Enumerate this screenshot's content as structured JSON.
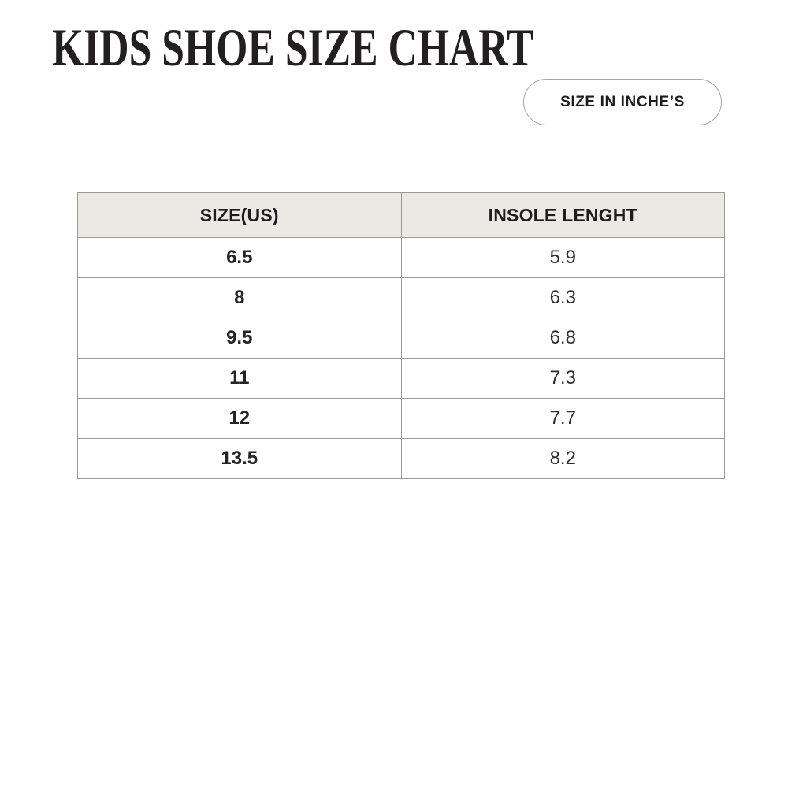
{
  "header": {
    "title": "KIDS SHOE SIZE CHART",
    "unit_badge": "SIZE IN INCHE’S"
  },
  "table": {
    "columns": [
      "SIZE(US)",
      "INSOLE LENGHT"
    ],
    "rows": [
      [
        "6.5",
        "5.9"
      ],
      [
        "8",
        "6.3"
      ],
      [
        "9.5",
        "6.8"
      ],
      [
        "11",
        "7.3"
      ],
      [
        "12",
        "7.7"
      ],
      [
        "13.5",
        "8.2"
      ]
    ]
  },
  "colors": {
    "header_row_bg": "#eae9e4",
    "table_border": "#9a9a9a",
    "title_text": "#211f20",
    "body_text": "#242424",
    "pill_border": "#a6a6a6",
    "page_bg": "#ffffff"
  },
  "chart_data": {
    "type": "table",
    "title": "KIDS SHOE SIZE CHART",
    "unit_note": "SIZE IN INCHE’S",
    "columns": [
      "SIZE(US)",
      "INSOLE LENGHT"
    ],
    "rows": [
      [
        6.5,
        5.9
      ],
      [
        8,
        6.3
      ],
      [
        9.5,
        6.8
      ],
      [
        11,
        7.3
      ],
      [
        12,
        7.7
      ],
      [
        13.5,
        8.2
      ]
    ]
  }
}
